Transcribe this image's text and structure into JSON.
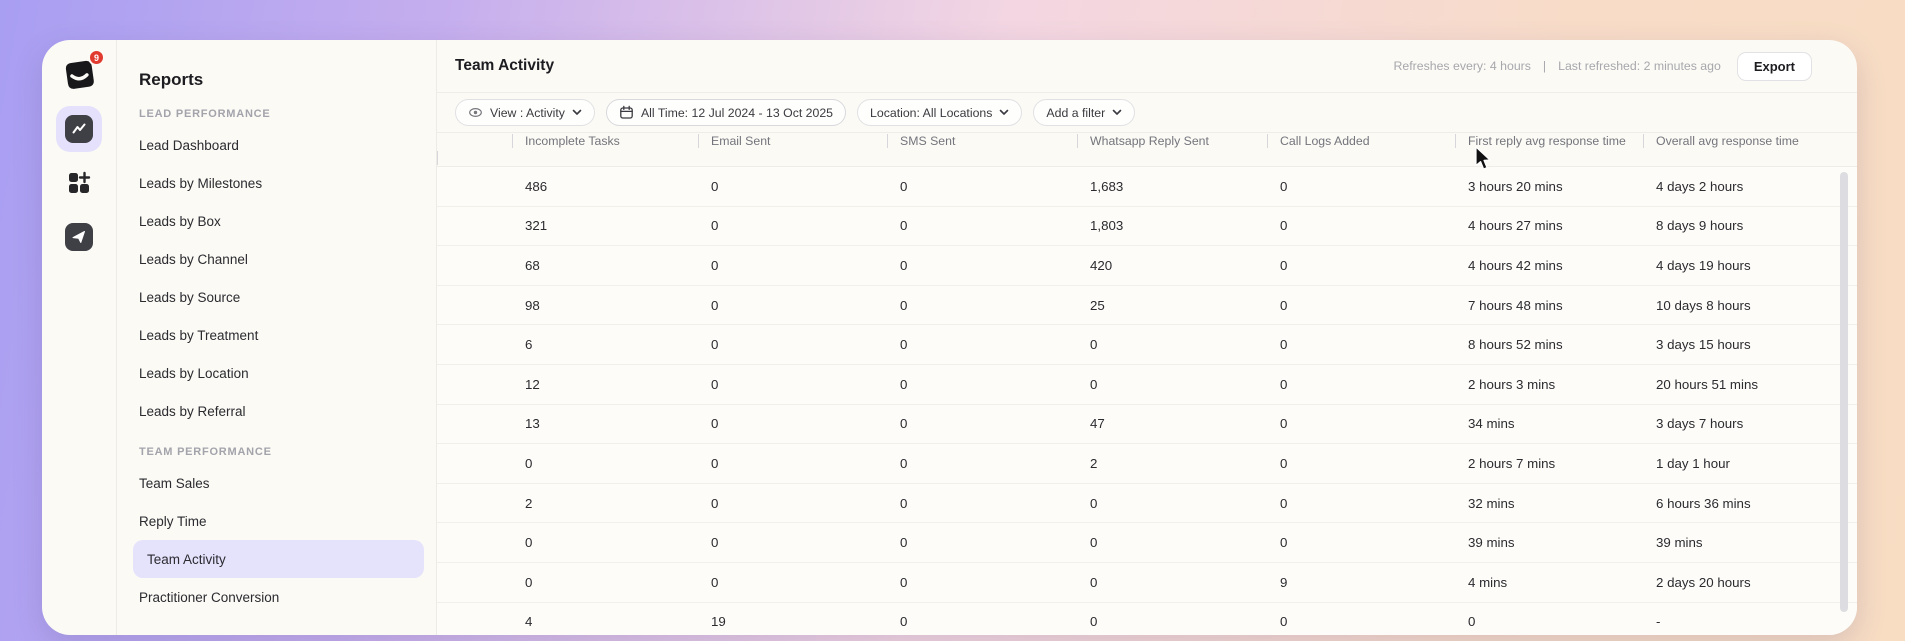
{
  "app": {
    "logo": "clinic-app-logo",
    "notification_badge": "9",
    "accent_color": "#e5e1fc",
    "badge_color": "#e13b30"
  },
  "sidebar": {
    "title": "Reports",
    "sections": [
      {
        "label": "LEAD PERFORMANCE",
        "items": [
          "Lead Dashboard",
          "Leads by Milestones",
          "Leads by Box",
          "Leads by Channel",
          "Leads by Source",
          "Leads by Treatment",
          "Leads by Location",
          "Leads by Referral"
        ]
      },
      {
        "label": "TEAM PERFORMANCE",
        "items": [
          "Team Sales",
          "Reply Time",
          "Team Activity",
          "Practitioner Conversion"
        ],
        "active_item": "Team Activity"
      }
    ]
  },
  "header": {
    "title": "Team Activity",
    "refresh_every": "Refreshes every: 4 hours",
    "meta_separator": "|",
    "last_refreshed": "Last refreshed: 2 minutes ago",
    "export_label": "Export"
  },
  "filters": {
    "view": "View : Activity",
    "date_range": "All Time: 12 Jul 2024 - 13 Oct 2025",
    "location": "Location: All Locations",
    "add_filter": "Add a filter"
  },
  "table": {
    "columns": [
      "Incomplete Tasks",
      "Email Sent",
      "SMS Sent",
      "Whatsapp Reply Sent",
      "Call Logs Added",
      "First reply avg response time",
      "Overall avg response time"
    ],
    "rows": [
      [
        "486",
        "0",
        "0",
        "1,683",
        "0",
        "3 hours 20 mins",
        "4 days 2 hours"
      ],
      [
        "321",
        "0",
        "0",
        "1,803",
        "0",
        "4 hours 27 mins",
        "8 days 9 hours"
      ],
      [
        "68",
        "0",
        "0",
        "420",
        "0",
        "4 hours 42 mins",
        "4 days 19 hours"
      ],
      [
        "98",
        "0",
        "0",
        "25",
        "0",
        "7 hours 48 mins",
        "10 days 8 hours"
      ],
      [
        "6",
        "0",
        "0",
        "0",
        "0",
        "8 hours 52 mins",
        "3 days 15 hours"
      ],
      [
        "12",
        "0",
        "0",
        "0",
        "0",
        "2 hours 3 mins",
        "20 hours 51 mins"
      ],
      [
        "13",
        "0",
        "0",
        "47",
        "0",
        "34 mins",
        "3 days 7 hours"
      ],
      [
        "0",
        "0",
        "0",
        "2",
        "0",
        "2 hours 7 mins",
        "1 day 1 hour"
      ],
      [
        "2",
        "0",
        "0",
        "0",
        "0",
        "32 mins",
        "6 hours 36 mins"
      ],
      [
        "0",
        "0",
        "0",
        "0",
        "0",
        "39 mins",
        "39 mins"
      ],
      [
        "0",
        "0",
        "0",
        "0",
        "9",
        "4 mins",
        "2 days 20 hours"
      ],
      [
        "4",
        "19",
        "0",
        "0",
        "0",
        "0",
        "-"
      ]
    ]
  }
}
